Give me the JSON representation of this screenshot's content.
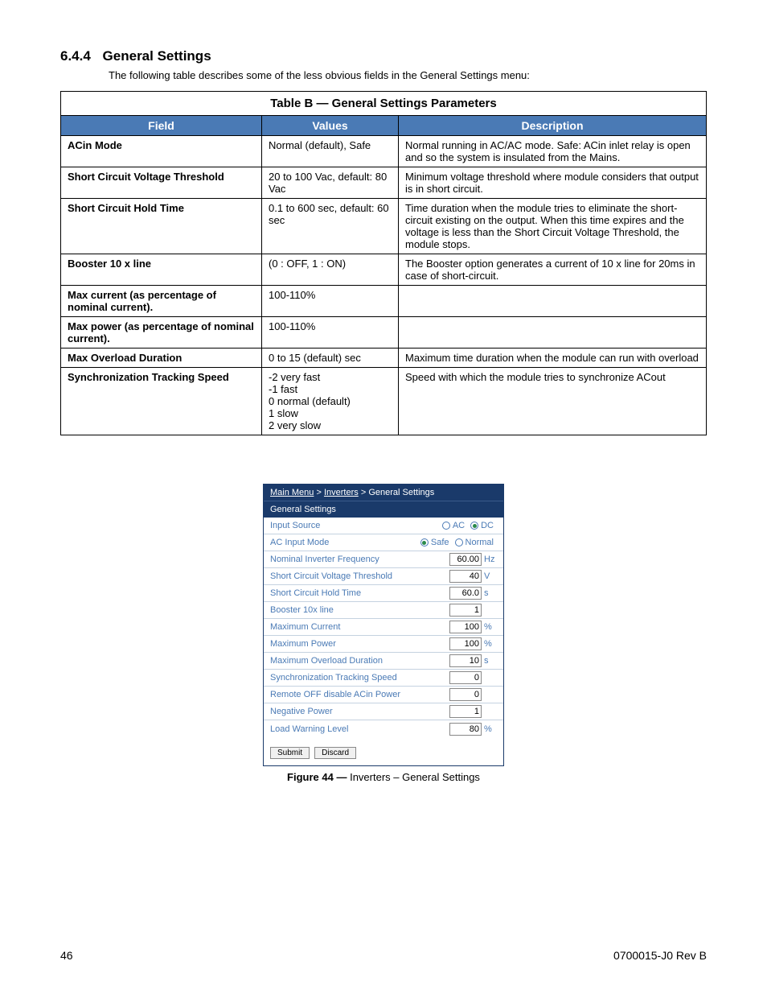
{
  "heading": {
    "number": "6.4.4",
    "title": "General Settings"
  },
  "intro": "The following table describes some of the less obvious fields in the General Settings menu:",
  "paramsTable": {
    "caption": "Table B  —  General Settings Parameters",
    "headers": {
      "field": "Field",
      "values": "Values",
      "desc": "Description"
    },
    "rows": [
      {
        "field": "ACin Mode",
        "values": "Normal (default), Safe",
        "desc": "Normal running in AC/AC mode. Safe: ACin inlet relay is open and so the system is insulated from the Mains."
      },
      {
        "field": "Short Circuit Voltage Threshold",
        "values": "20 to 100 Vac, default: 80 Vac",
        "desc": "Minimum voltage threshold where module considers that output is in short circuit."
      },
      {
        "field": "Short Circuit Hold Time",
        "values": "0.1 to 600 sec, default: 60 sec",
        "desc": "Time duration when the module tries to eliminate the short-circuit existing on the output. When this time expires and the voltage is less than the Short Circuit Voltage Threshold, the module stops."
      },
      {
        "field": "Booster 10 x line",
        "values": "(0 : OFF, 1 : ON)",
        "desc": "The Booster option generates a current of 10 x line for 20ms in case of short-circuit."
      },
      {
        "field": "Max current (as percentage of nominal current).",
        "values": "100-110%",
        "desc": ""
      },
      {
        "field": "Max power (as percentage of nominal current).",
        "values": "100-110%",
        "desc": ""
      },
      {
        "field": "Max Overload Duration",
        "values": "0 to 15 (default) sec",
        "desc": "Maximum time duration when the module can run with overload"
      },
      {
        "field": "Synchronization Tracking Speed",
        "values": "-2 very fast\n-1 fast\n0 normal (default)\n1 slow\n2 very slow",
        "desc": "Speed with which the module tries to synchronize ACout"
      }
    ]
  },
  "panel": {
    "breadcrumb": {
      "main": "Main Menu",
      "sep": " > ",
      "inverters": "Inverters",
      "current": "General Settings"
    },
    "title": "General Settings",
    "rows": [
      {
        "label": "Input Source",
        "type": "radio",
        "opts": [
          {
            "lbl": "AC",
            "checked": false
          },
          {
            "lbl": "DC",
            "checked": true
          }
        ]
      },
      {
        "label": "AC Input Mode",
        "type": "radio",
        "opts": [
          {
            "lbl": "Safe",
            "checked": true
          },
          {
            "lbl": "Normal",
            "checked": false
          }
        ]
      },
      {
        "label": "Nominal Inverter Frequency",
        "type": "input",
        "value": "60.00",
        "unit": "Hz"
      },
      {
        "label": "Short Circuit Voltage Threshold",
        "type": "input",
        "value": "40",
        "unit": "V"
      },
      {
        "label": "Short Circuit Hold Time",
        "type": "input",
        "value": "60.0",
        "unit": "s"
      },
      {
        "label": "Booster 10x line",
        "type": "input",
        "value": "1",
        "unit": ""
      },
      {
        "label": "Maximum Current",
        "type": "input",
        "value": "100",
        "unit": "%"
      },
      {
        "label": "Maximum Power",
        "type": "input",
        "value": "100",
        "unit": "%"
      },
      {
        "label": "Maximum Overload Duration",
        "type": "input",
        "value": "10",
        "unit": "s"
      },
      {
        "label": "Synchronization Tracking Speed",
        "type": "input",
        "value": "0",
        "unit": ""
      },
      {
        "label": "Remote OFF disable ACin Power",
        "type": "input",
        "value": "0",
        "unit": ""
      },
      {
        "label": "Negative Power",
        "type": "input",
        "value": "1",
        "unit": ""
      },
      {
        "label": "Load Warning Level",
        "type": "input",
        "value": "80",
        "unit": "%"
      }
    ],
    "buttons": {
      "submit": "Submit",
      "discard": "Discard"
    }
  },
  "figure": {
    "number": "Figure 44  —  ",
    "caption": "Inverters – General Settings"
  },
  "footer": {
    "page": "46",
    "doc": "0700015-J0    Rev B"
  },
  "colors": {
    "header_bg": "#4a7ab5",
    "panel_bg": "#1a3a6a",
    "panel_text": "#4a7ab5",
    "radio_dot": "#2a8a4a"
  }
}
